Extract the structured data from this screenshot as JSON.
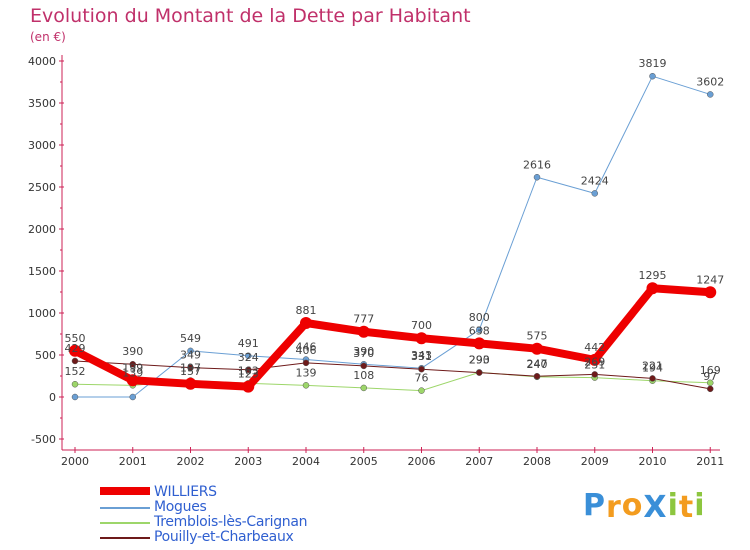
{
  "title": "Evolution du Montant de la Dette par Habitant",
  "subtitle": "(en €)",
  "logo": {
    "text": "ProXiti",
    "letters": [
      {
        "ch": "P",
        "color": "#3a8fd8"
      },
      {
        "ch": "r",
        "color": "#f39c1f"
      },
      {
        "ch": "o",
        "color": "#f39c1f"
      },
      {
        "ch": "X",
        "color": "#3a8fd8"
      },
      {
        "ch": "i",
        "color": "#8dc63f"
      },
      {
        "ch": "t",
        "color": "#f39c1f"
      },
      {
        "ch": "i",
        "color": "#8dc63f"
      }
    ]
  },
  "chart_data": {
    "type": "line",
    "x": [
      "2000",
      "2001",
      "2002",
      "2003",
      "2004",
      "2005",
      "2006",
      "2007",
      "2008",
      "2009",
      "2010",
      "2011"
    ],
    "ylim": [
      -500,
      4000
    ],
    "yticks": [
      "-500",
      "0",
      "500",
      "1000",
      "1500",
      "2000",
      "2500",
      "3000",
      "3500",
      "4000"
    ],
    "grid": false,
    "legend": "bottom-left",
    "series": [
      {
        "name": "WILLIERS",
        "color": "#ee0000",
        "width": 8,
        "values": [
          550,
          199,
          157,
          123,
          881,
          777,
          700,
          638,
          575,
          442,
          1295,
          1247
        ],
        "labels": [
          "550",
          "199",
          "157",
          "123",
          "881",
          "777",
          "700",
          "638",
          "575",
          "442",
          "1295",
          "1247"
        ]
      },
      {
        "name": "Mogues",
        "color": "#6a9fd4",
        "width": 1,
        "values": [
          0,
          0,
          549,
          491,
          446,
          390,
          343,
          800,
          2616,
          2424,
          3819,
          3602
        ],
        "labels": [
          "",
          "",
          "549",
          "491",
          "446",
          "390",
          "343",
          "800",
          "2616",
          "2424",
          "3819",
          "3602"
        ]
      },
      {
        "name": "Tremblois-lès-Carignan",
        "color": "#9dd66a",
        "width": 1,
        "values": [
          152,
          139,
          197,
          163,
          139,
          108,
          76,
          293,
          240,
          231,
          194,
          169
        ],
        "labels": [
          "152",
          "139",
          "197",
          "163",
          "139",
          "108",
          "76",
          "293",
          "240",
          "231",
          "194",
          "169"
        ]
      },
      {
        "name": "Pouilly-et-Charbeaux",
        "color": "#6e1a1a",
        "width": 1,
        "values": [
          429,
          390,
          349,
          324,
          406,
          370,
          331,
          290,
          247,
          269,
          221,
          97
        ],
        "labels": [
          "429",
          "390",
          "349",
          "324",
          "406",
          "370",
          "331",
          "290",
          "247",
          "269",
          "221",
          "97"
        ]
      }
    ]
  }
}
